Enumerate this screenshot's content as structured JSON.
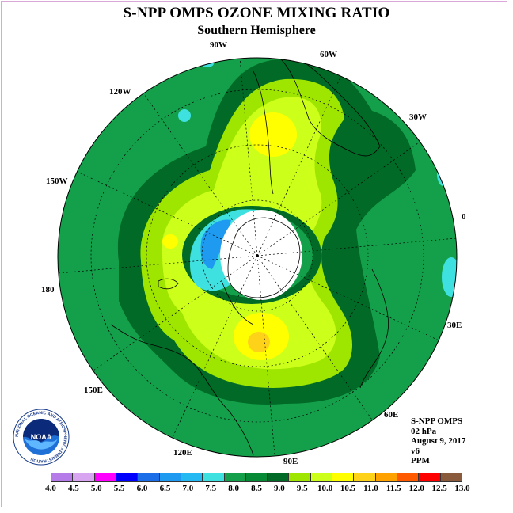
{
  "title": "S-NPP OMPS OZONE MIXING RATIO",
  "subtitle": "Southern Hemisphere",
  "longitude_labels": {
    "lon_90w": "90W",
    "lon_60w": "60W",
    "lon_30w": "30W",
    "lon_0": "0",
    "lon_30e": "30E",
    "lon_60e": "60E",
    "lon_90e": "90E",
    "lon_120e": "120E",
    "lon_150e": "150E",
    "lon_180": "180",
    "lon_150w": "150W",
    "lon_120w": "120W"
  },
  "info": {
    "instrument": "S-NPP OMPS",
    "pressure_level": "02 hPa",
    "date": "August 9, 2017",
    "version": "v6",
    "units": "PPM"
  },
  "logo": {
    "text": "NOAA",
    "ring_text": "NATIONAL OCEANIC AND ATMOSPHERIC ADMINISTRATION"
  },
  "colorbar": {
    "tick_labels": [
      "4.0",
      "4.5",
      "5.0",
      "5.5",
      "6.0",
      "6.5",
      "7.0",
      "7.5",
      "8.0",
      "8.5",
      "9.0",
      "9.5",
      "10.0",
      "10.5",
      "11.0",
      "11.5",
      "12.0",
      "12.5",
      "13.0"
    ],
    "colors": [
      "#b57be8",
      "#d8a6f0",
      "#ff00ff",
      "#0000ff",
      "#1c6ee8",
      "#1e9bf0",
      "#24b9f2",
      "#3fe0e0",
      "#14a04a",
      "#078a36",
      "#006a26",
      "#9ee600",
      "#ccff1a",
      "#ffff00",
      "#ffd21a",
      "#ffa200",
      "#ff5a00",
      "#ff0000",
      "#8a5a3c"
    ]
  },
  "map_colors": {
    "background": "#ffffff",
    "outer_field": "#14a04a",
    "dark_band": "#006a26",
    "light_green": "#9ee600",
    "yellow_green": "#ccff1a",
    "yellow": "#ffff00",
    "orange": "#ffd21a",
    "cyan": "#3fe0e0",
    "blue": "#1e9bf0",
    "coast": "#000000",
    "grid": "#000000"
  }
}
